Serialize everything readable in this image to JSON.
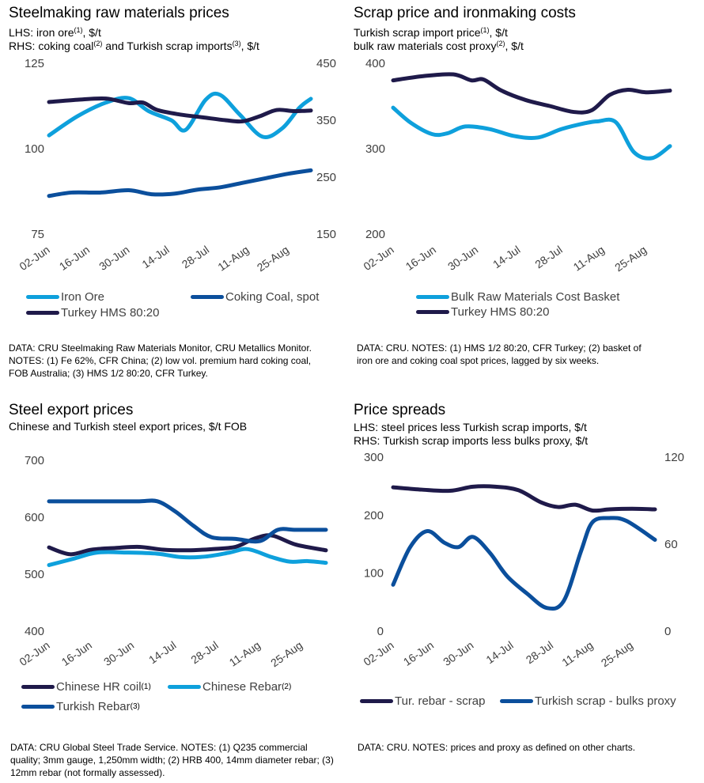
{
  "colors": {
    "navy": "#1f1a4a",
    "light_blue": "#0ea0dc",
    "mid_blue": "#0b4f9c"
  },
  "panels": [
    {
      "title": "Steelmaking raw materials prices",
      "subtitle_lines": [
        {
          "text": "LHS:  iron ore",
          "sup": "(1)",
          "tail": ", $/t"
        },
        {
          "text": "RHS: coking coal",
          "sup": "(2)",
          "mid": " and Turkish scrap imports",
          "sup2": "(3)",
          "tail": ", $/t"
        }
      ],
      "legend": [
        {
          "label": "Iron Ore",
          "sup": ""
        },
        {
          "label": "Coking Coal, spot",
          "sup": ""
        },
        {
          "label": "Turkey HMS 80:20",
          "sup": ""
        }
      ],
      "note": "DATA: CRU Steelmaking Raw Materials Monitor, CRU Metallics Monitor.  NOTES: (1) Fe 62%, CFR China; (2) low vol. premium hard coking coal, FOB Australia; (3) HMS 1/2 80:20, CFR Turkey."
    },
    {
      "title": "Scrap price and ironmaking costs",
      "subtitle_lines": [
        {
          "text": "Turkish scrap import price",
          "sup": "(1)",
          "tail": ", $/t"
        },
        {
          "text": "bulk raw materials cost proxy",
          "sup": "(2)",
          "tail": ", $/t"
        }
      ],
      "legend": [
        {
          "label": "Bulk Raw Materials Cost Basket",
          "sup": ""
        },
        {
          "label": "Turkey HMS 80:20",
          "sup": ""
        }
      ],
      "note": "DATA: CRU.  NOTES: (1) HMS 1/2 80:20, CFR Turkey; (2) basket of iron ore and coking coal spot prices, lagged by six weeks."
    },
    {
      "title": "Steel export prices",
      "subtitle_lines": [
        {
          "text": "Chinese and Turkish steel export prices, $/t FOB",
          "sup": "",
          "tail": ""
        }
      ],
      "legend": [
        {
          "label": "Chinese HR coil",
          "sup": "(1)"
        },
        {
          "label": "Chinese Rebar",
          "sup": "(2)"
        },
        {
          "label": "Turkish Rebar",
          "sup": "(3)"
        }
      ],
      "note": "DATA: CRU Global Steel Trade Service. NOTES: (1) Q235 commercial quality; 3mm gauge, 1,250mm width; (2) HRB 400, 14mm diameter rebar; (3) 12mm rebar (not formally assessed)."
    },
    {
      "title": "Price spreads",
      "subtitle_lines": [
        {
          "text": "LHS: steel prices less Turkish scrap imports, $/t",
          "sup": "",
          "tail": ""
        },
        {
          "text": "RHS: Turkish scrap imports less bulks proxy, $/t",
          "sup": "",
          "tail": ""
        }
      ],
      "legend": [
        {
          "label": "Tur. rebar - scrap",
          "sup": ""
        },
        {
          "label": "Turkish scrap - bulks proxy",
          "sup": ""
        }
      ],
      "note": "DATA: CRU.  NOTES: prices and proxy as defined on other charts."
    }
  ],
  "chart_data": [
    {
      "type": "line",
      "title": "Steelmaking raw materials prices",
      "x_tick_labels": [
        "02-Jun",
        "16-Jun",
        "30-Jun",
        "14-Jul",
        "28-Jul",
        "11-Aug",
        "25-Aug"
      ],
      "x_range_days": [
        0,
        92
      ],
      "y_left": {
        "ticks": [
          125,
          100,
          75
        ],
        "range": [
          75,
          125
        ]
      },
      "y_right": {
        "ticks": [
          450,
          350,
          250,
          150
        ],
        "range": [
          150,
          450
        ]
      },
      "legend_position": "bottom",
      "series": [
        {
          "name": "Iron Ore",
          "axis": "left",
          "color": "light_blue",
          "x": [
            0,
            10,
            20,
            28,
            35,
            43,
            48,
            55,
            60,
            67,
            75,
            82,
            88,
            92
          ],
          "values": [
            103.9,
            109.5,
            113.5,
            114.8,
            111.0,
            108.3,
            105.5,
            114.3,
            115.8,
            110.0,
            103.5,
            106.0,
            112.0,
            114.6
          ]
        },
        {
          "name": "Coking Coal, spot",
          "axis": "right",
          "color": "mid_blue",
          "x": [
            0,
            8,
            18,
            28,
            36,
            44,
            52,
            60,
            68,
            76,
            84,
            92
          ],
          "values": [
            217,
            223,
            223,
            227,
            220,
            221,
            228,
            232,
            240,
            248,
            256,
            262
          ]
        },
        {
          "name": "Turkey HMS 80:20",
          "axis": "right",
          "color": "navy",
          "x": [
            0,
            10,
            20,
            28,
            33,
            38,
            46,
            54,
            62,
            68,
            74,
            80,
            86,
            92
          ],
          "values": [
            382,
            386,
            388,
            380,
            381,
            368,
            360,
            355,
            350,
            348,
            357,
            368,
            366,
            367
          ]
        }
      ]
    },
    {
      "type": "line",
      "title": "Scrap price and ironmaking costs",
      "x_tick_labels": [
        "02-Jun",
        "16-Jun",
        "30-Jun",
        "14-Jul",
        "28-Jul",
        "11-Aug",
        "25-Aug"
      ],
      "x_range_days": [
        0,
        92
      ],
      "y_left": {
        "ticks": [
          400,
          300,
          200
        ],
        "range": [
          200,
          400
        ]
      },
      "legend_position": "bottom",
      "series": [
        {
          "name": "Bulk Raw Materials Cost Basket",
          "axis": "left",
          "color": "light_blue",
          "x": [
            0,
            6,
            13,
            18,
            24,
            32,
            40,
            48,
            56,
            64,
            68,
            74,
            80,
            86,
            92
          ],
          "values": [
            348,
            330,
            317,
            318,
            326,
            323,
            315,
            313,
            323,
            330,
            332,
            331,
            296,
            289,
            303
          ]
        },
        {
          "name": "Turkey HMS 80:20",
          "axis": "left",
          "color": "navy",
          "x": [
            0,
            10,
            20,
            26,
            30,
            36,
            44,
            52,
            60,
            66,
            72,
            78,
            84,
            92
          ],
          "values": [
            380,
            385,
            387,
            380,
            381,
            368,
            357,
            350,
            343,
            345,
            363,
            369,
            366,
            368
          ]
        }
      ]
    },
    {
      "type": "line",
      "title": "Steel export prices",
      "x_tick_labels": [
        "02-Jun",
        "16-Jun",
        "30-Jun",
        "14-Jul",
        "28-Jul",
        "11-Aug",
        "25-Aug"
      ],
      "x_range_days": [
        0,
        92
      ],
      "y_left": {
        "ticks": [
          700,
          600,
          500,
          400
        ],
        "range": [
          400,
          700
        ]
      },
      "legend_position": "bottom",
      "series": [
        {
          "name": "Chinese HR coil",
          "axis": "left",
          "color": "navy",
          "x": [
            0,
            7,
            14,
            22,
            30,
            38,
            46,
            54,
            62,
            68,
            74,
            82,
            92
          ],
          "values": [
            547,
            535,
            543,
            546,
            548,
            543,
            542,
            544,
            548,
            562,
            568,
            552,
            542
          ]
        },
        {
          "name": "Chinese Rebar",
          "axis": "left",
          "color": "light_blue",
          "x": [
            0,
            8,
            16,
            26,
            36,
            44,
            52,
            60,
            66,
            74,
            80,
            86,
            92
          ],
          "values": [
            516,
            527,
            538,
            538,
            536,
            530,
            531,
            538,
            544,
            530,
            522,
            523,
            520
          ]
        },
        {
          "name": "Turkish Rebar",
          "axis": "left",
          "color": "mid_blue",
          "x": [
            0,
            10,
            20,
            30,
            36,
            42,
            48,
            54,
            62,
            70,
            76,
            82,
            92
          ],
          "values": [
            628,
            628,
            628,
            628,
            628,
            610,
            585,
            565,
            562,
            558,
            578,
            578,
            578
          ]
        }
      ]
    },
    {
      "type": "line",
      "title": "Price spreads",
      "x_tick_labels": [
        "02-Jun",
        "16-Jun",
        "30-Jun",
        "14-Jul",
        "28-Jul",
        "11-Aug",
        "25-Aug"
      ],
      "x_range_days": [
        0,
        92
      ],
      "y_left": {
        "ticks": [
          300,
          200,
          100,
          0
        ],
        "range": [
          0,
          300
        ]
      },
      "y_right": {
        "ticks": [
          120,
          60,
          0
        ],
        "range": [
          0,
          120
        ]
      },
      "legend_position": "bottom",
      "series": [
        {
          "name": "Tur. rebar - scrap",
          "axis": "left",
          "color": "navy",
          "x": [
            0,
            10,
            20,
            28,
            36,
            44,
            52,
            58,
            64,
            70,
            76,
            84,
            92
          ],
          "values": [
            248,
            244,
            242,
            249,
            249,
            243,
            222,
            214,
            218,
            208,
            210,
            211,
            210
          ]
        },
        {
          "name": "Turkish scrap - bulks proxy",
          "axis": "right",
          "color": "mid_blue",
          "x": [
            0,
            6,
            12,
            18,
            23,
            28,
            34,
            40,
            47,
            54,
            60,
            66,
            70,
            76,
            82,
            92
          ],
          "values": [
            32,
            58,
            69,
            61,
            58,
            65,
            54,
            38,
            26,
            16,
            21,
            55,
            75,
            78,
            76,
            63
          ]
        }
      ]
    }
  ]
}
